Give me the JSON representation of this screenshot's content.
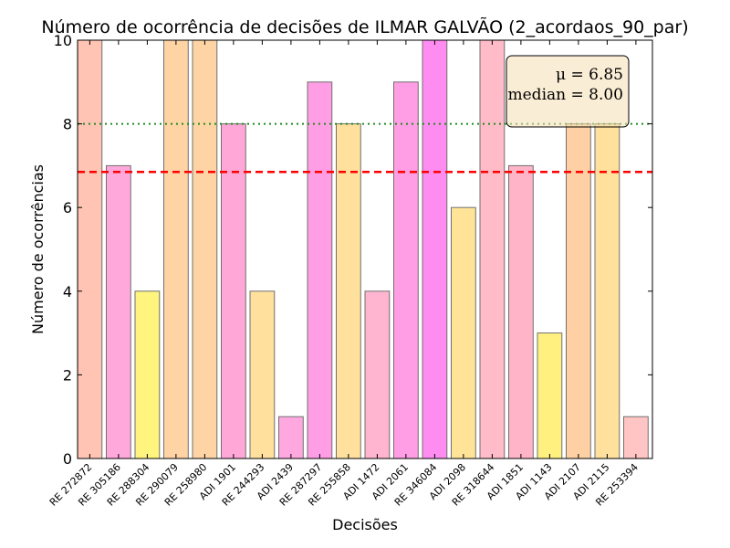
{
  "chart_data": {
    "type": "bar",
    "title": "Número de ocorrência de decisões de ILMAR GALVÃO (2_acordaos_90_par)",
    "xlabel": "Decisões",
    "ylabel": "Número de ocorrências",
    "ylim": [
      0,
      10
    ],
    "yticks": [
      "0",
      "2",
      "4",
      "6",
      "8",
      "10"
    ],
    "categories": [
      "RE 272872",
      "RE 305186",
      "RE 288304",
      "RE 290079",
      "RE 258980",
      "ADI 1901",
      "RE 244293",
      "ADI 2439",
      "RE 287297",
      "RE 255858",
      "ADI 1472",
      "ADI 2061",
      "RE 346084",
      "ADI 2098",
      "RE 318644",
      "ADI 1851",
      "ADI 1143",
      "ADI 2107",
      "ADI 2115",
      "RE 253394"
    ],
    "values": [
      10,
      7,
      4,
      10,
      10,
      8,
      4,
      1,
      9,
      8,
      4,
      9,
      10,
      6,
      10,
      7,
      3,
      8,
      8,
      1
    ],
    "bar_colors": [
      "#ffc4b4",
      "#ffa8dc",
      "#fff47e",
      "#ffd4a4",
      "#ffd4a4",
      "#ffa8d8",
      "#ffe09c",
      "#ffa8e0",
      "#ff9ee4",
      "#ffe09c",
      "#ffb4d0",
      "#ff9ee4",
      "#ff8cf0",
      "#ffe498",
      "#ffbcc8",
      "#ffb4c8",
      "#fff080",
      "#ffd0a4",
      "#ffe09c",
      "#ffc4c4"
    ],
    "mean": 6.85,
    "median": 8.0,
    "mean_label": "μ = 6.85",
    "median_label": "median = 8.00",
    "mean_line_color": "#ff0000",
    "median_line_color": "#228b22",
    "stats_box_color": "#f5deb3",
    "legend_position": "top-right",
    "grid": false
  }
}
